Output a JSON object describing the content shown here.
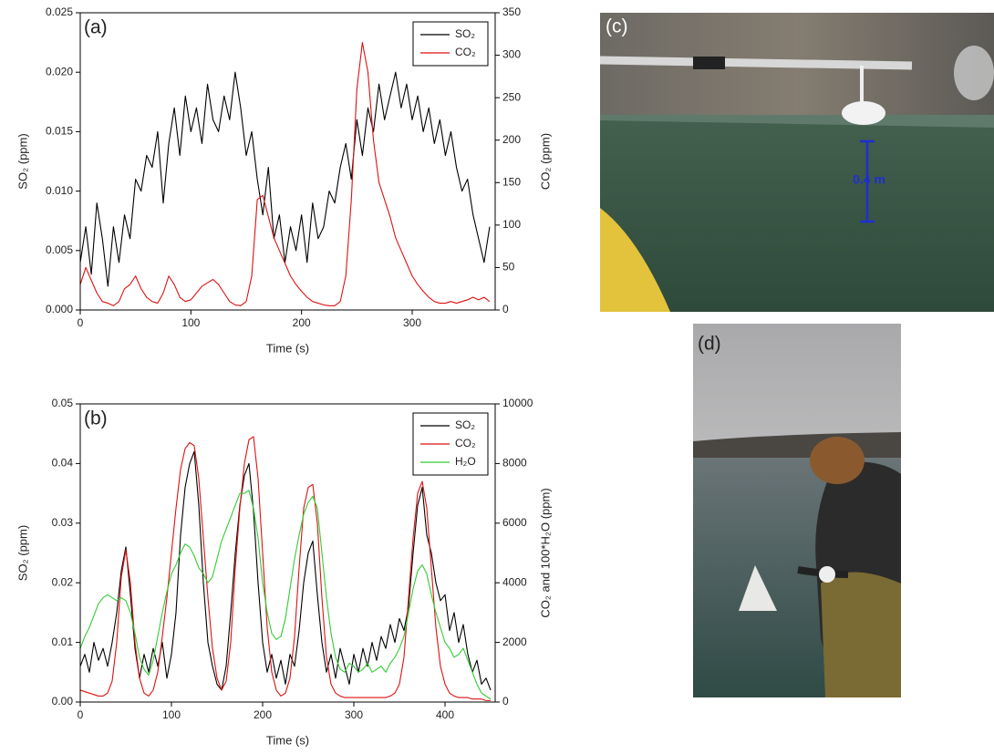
{
  "chart_data": [
    {
      "type": "line",
      "panel_label": "(a)",
      "x_label": "Time (s)",
      "y_label": "SO₂ (ppm)",
      "y2_label": "CO₂ (ppm)",
      "xlim": [
        0,
        375
      ],
      "xticks": [
        0,
        100,
        200,
        300
      ],
      "ylim": [
        0,
        0.025
      ],
      "yticks": [
        {
          "value": 0,
          "label": "0.000"
        },
        0.005,
        {
          "value": 0.01,
          "label": "0.010"
        },
        0.015,
        {
          "value": 0.02,
          "label": "0.020"
        },
        0.025
      ],
      "y2lim": [
        0,
        350
      ],
      "y2ticks": [
        0,
        50,
        100,
        150,
        200,
        250,
        300,
        350
      ],
      "legend": "upper right",
      "x": [
        0,
        5,
        10,
        15,
        20,
        25,
        30,
        35,
        40,
        45,
        50,
        55,
        60,
        65,
        70,
        75,
        80,
        85,
        90,
        95,
        100,
        105,
        110,
        115,
        120,
        125,
        130,
        135,
        140,
        145,
        150,
        155,
        160,
        165,
        170,
        175,
        180,
        185,
        190,
        195,
        200,
        205,
        210,
        215,
        220,
        225,
        230,
        235,
        240,
        245,
        250,
        255,
        260,
        265,
        270,
        275,
        280,
        285,
        290,
        295,
        300,
        305,
        310,
        315,
        320,
        325,
        330,
        335,
        340,
        345,
        350,
        355,
        360,
        365,
        370
      ],
      "series": [
        {
          "name": "SO₂",
          "color": "#000000",
          "values": [
            0.004,
            0.007,
            0.003,
            0.009,
            0.006,
            0.002,
            0.007,
            0.004,
            0.008,
            0.006,
            0.011,
            0.01,
            0.013,
            0.012,
            0.015,
            0.009,
            0.014,
            0.017,
            0.013,
            0.018,
            0.015,
            0.017,
            0.014,
            0.019,
            0.016,
            0.015,
            0.018,
            0.016,
            0.02,
            0.017,
            0.013,
            0.015,
            0.011,
            0.008,
            0.012,
            0.006,
            0.008,
            0.004,
            0.007,
            0.005,
            0.008,
            0.004,
            0.009,
            0.006,
            0.007,
            0.01,
            0.009,
            0.012,
            0.014,
            0.011,
            0.016,
            0.013,
            0.017,
            0.015,
            0.019,
            0.016,
            0.018,
            0.02,
            0.017,
            0.019,
            0.016,
            0.018,
            0.015,
            0.017,
            0.014,
            0.016,
            0.013,
            0.015,
            0.012,
            0.01,
            0.011,
            0.008,
            0.006,
            0.004,
            0.007
          ]
        },
        {
          "name": "CO₂",
          "color": "#dd1111",
          "axis": "y2",
          "values": [
            30,
            50,
            35,
            20,
            10,
            8,
            5,
            10,
            25,
            30,
            40,
            25,
            15,
            10,
            8,
            20,
            40,
            30,
            15,
            10,
            12,
            20,
            28,
            32,
            36,
            30,
            20,
            10,
            6,
            5,
            10,
            40,
            130,
            135,
            110,
            85,
            70,
            55,
            40,
            30,
            22,
            15,
            10,
            8,
            6,
            5,
            5,
            10,
            40,
            130,
            260,
            315,
            280,
            200,
            150,
            130,
            110,
            85,
            70,
            55,
            40,
            30,
            22,
            15,
            10,
            8,
            8,
            10,
            8,
            10,
            12,
            15,
            12,
            15,
            10
          ]
        }
      ]
    },
    {
      "type": "line",
      "panel_label": "(b)",
      "x_label": "Time (s)",
      "y_label": "SO₂ (ppm)",
      "y2_label": "CO₂ and 100*H₂O (ppm)",
      "xlim": [
        0,
        455
      ],
      "xticks": [
        0,
        100,
        200,
        300,
        400
      ],
      "ylim": [
        0,
        0.05
      ],
      "yticks": [
        {
          "value": 0,
          "label": "0.00"
        },
        0.01,
        0.02,
        0.03,
        0.04,
        0.05
      ],
      "y2lim": [
        0,
        10000
      ],
      "y2ticks": [
        0,
        2000,
        4000,
        6000,
        8000,
        10000
      ],
      "legend": "upper right",
      "x": [
        0,
        5,
        10,
        15,
        20,
        25,
        30,
        35,
        40,
        45,
        50,
        55,
        60,
        65,
        70,
        75,
        80,
        85,
        90,
        95,
        100,
        105,
        110,
        115,
        120,
        125,
        130,
        135,
        140,
        145,
        150,
        155,
        160,
        165,
        170,
        175,
        180,
        185,
        190,
        195,
        200,
        205,
        210,
        215,
        220,
        225,
        230,
        235,
        240,
        245,
        250,
        255,
        260,
        265,
        270,
        275,
        280,
        285,
        290,
        295,
        300,
        305,
        310,
        315,
        320,
        325,
        330,
        335,
        340,
        345,
        350,
        355,
        360,
        365,
        370,
        375,
        380,
        385,
        390,
        395,
        400,
        405,
        410,
        415,
        420,
        425,
        430,
        435,
        440,
        445,
        450
      ],
      "series": [
        {
          "name": "SO₂",
          "color": "#000000",
          "values": [
            0.006,
            0.008,
            0.005,
            0.01,
            0.007,
            0.009,
            0.006,
            0.01,
            0.015,
            0.022,
            0.026,
            0.018,
            0.009,
            0.004,
            0.008,
            0.005,
            0.009,
            0.006,
            0.01,
            0.004,
            0.008,
            0.015,
            0.028,
            0.036,
            0.04,
            0.042,
            0.033,
            0.02,
            0.01,
            0.006,
            0.003,
            0.002,
            0.006,
            0.015,
            0.025,
            0.033,
            0.038,
            0.04,
            0.032,
            0.02,
            0.01,
            0.005,
            0.008,
            0.004,
            0.007,
            0.003,
            0.008,
            0.006,
            0.012,
            0.02,
            0.025,
            0.027,
            0.018,
            0.01,
            0.005,
            0.008,
            0.004,
            0.009,
            0.006,
            0.003,
            0.008,
            0.005,
            0.009,
            0.006,
            0.01,
            0.007,
            0.011,
            0.009,
            0.013,
            0.01,
            0.014,
            0.012,
            0.016,
            0.025,
            0.033,
            0.036,
            0.028,
            0.025,
            0.02,
            0.017,
            0.018,
            0.012,
            0.015,
            0.01,
            0.013,
            0.008,
            0.005,
            0.007,
            0.003,
            0.004,
            0.002
          ]
        },
        {
          "name": "CO₂",
          "color": "#dd1111",
          "axis": "y2",
          "values": [
            400,
            350,
            300,
            250,
            200,
            200,
            300,
            700,
            2000,
            4200,
            5100,
            4000,
            2000,
            800,
            300,
            200,
            400,
            1000,
            2200,
            3500,
            5000,
            6500,
            7800,
            8500,
            8700,
            8600,
            7500,
            5500,
            3500,
            1800,
            800,
            400,
            700,
            2000,
            4500,
            6500,
            8000,
            8800,
            8900,
            7500,
            5000,
            2500,
            1000,
            400,
            200,
            300,
            800,
            2200,
            4500,
            6500,
            7200,
            7300,
            6000,
            3500,
            1500,
            600,
            300,
            200,
            150,
            150,
            150,
            150,
            150,
            150,
            150,
            150,
            150,
            150,
            200,
            300,
            600,
            1500,
            3500,
            5500,
            7000,
            7400,
            6500,
            4500,
            2500,
            1200,
            600,
            300,
            200,
            150,
            150,
            150,
            100,
            100,
            100,
            50,
            50
          ]
        },
        {
          "name": "H₂O",
          "color": "#33cc33",
          "axis": "y2",
          "values": [
            1800,
            2200,
            2500,
            2900,
            3300,
            3500,
            3600,
            3500,
            3400,
            3500,
            3400,
            3000,
            2300,
            1500,
            1100,
            900,
            1400,
            2200,
            3000,
            3700,
            4300,
            4600,
            5000,
            5300,
            5200,
            4900,
            4500,
            4300,
            4000,
            4200,
            4800,
            5400,
            5800,
            6200,
            6600,
            7000,
            7000,
            7100,
            6500,
            5500,
            4000,
            3000,
            2300,
            2100,
            2200,
            2800,
            3800,
            4800,
            5600,
            6300,
            6700,
            6900,
            6500,
            5000,
            3500,
            2300,
            1500,
            1100,
            1000,
            1300,
            1200,
            1000,
            1100,
            1300,
            1000,
            1100,
            1200,
            1000,
            1300,
            1500,
            1800,
            2200,
            3000,
            3800,
            4400,
            4600,
            4300,
            3600,
            3000,
            2500,
            2000,
            1800,
            1500,
            1600,
            1800,
            1400,
            1000,
            600,
            300,
            200,
            100
          ]
        }
      ]
    }
  ],
  "photos": [
    {
      "label": "(c)",
      "annotation": "0.4 m"
    },
    {
      "label": "(d)"
    }
  ]
}
